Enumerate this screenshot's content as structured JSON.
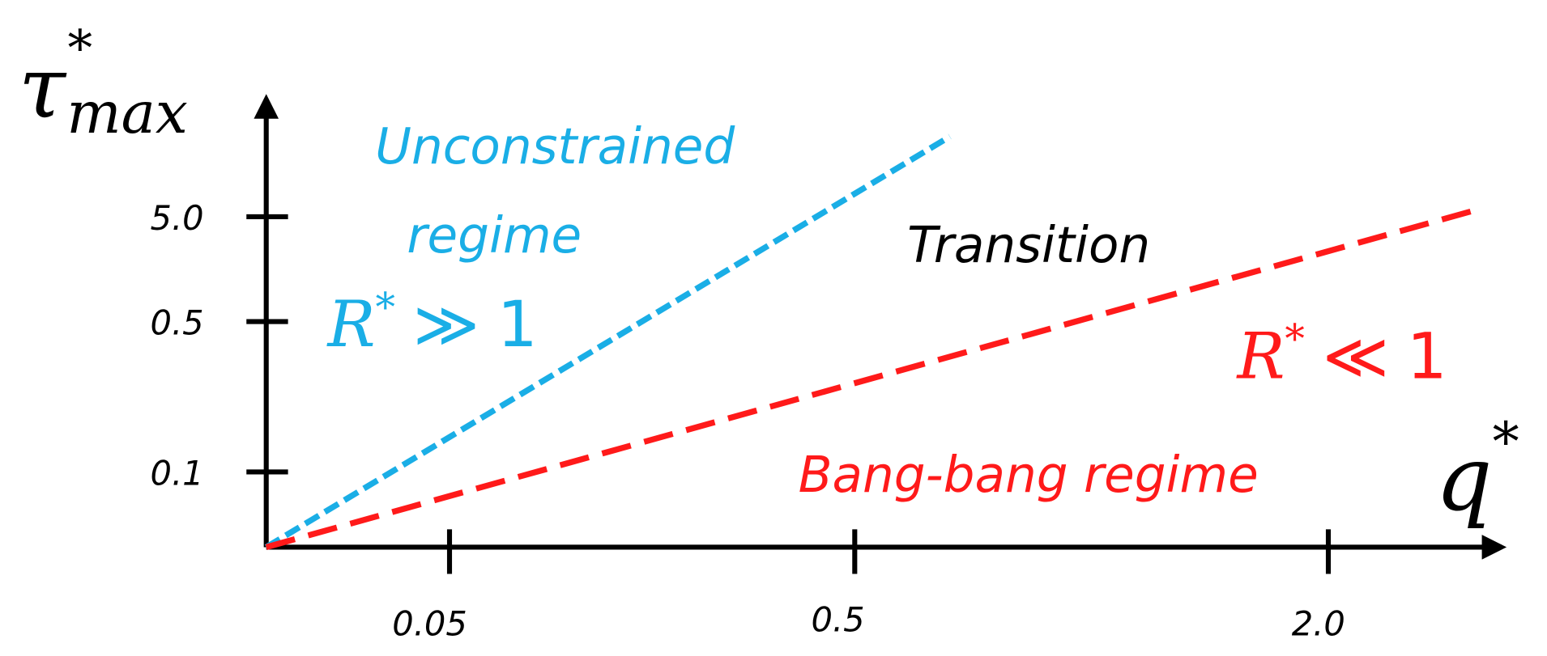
{
  "axes": {
    "y": {
      "symbol": "τ",
      "superscript": "*",
      "subscript": "max",
      "ticks": [
        "5.0",
        "0.5",
        "0.1"
      ]
    },
    "x": {
      "symbol": "q",
      "superscript": "*",
      "ticks": [
        "0.05",
        "0.5",
        "2.0"
      ]
    }
  },
  "regions": [
    {
      "title": "Unconstrained",
      "subtitle": "regime",
      "condition": {
        "symbol": "R",
        "superscript": "*",
        "relation": "≫",
        "value": "1"
      },
      "color": "#1aaee6"
    },
    {
      "title": "Transition",
      "color": "#000000"
    },
    {
      "title": "Bang-bang regime",
      "condition": {
        "symbol": "R",
        "superscript": "*",
        "relation": "≪",
        "value": "1"
      },
      "color": "#ff1a1a"
    }
  ]
}
